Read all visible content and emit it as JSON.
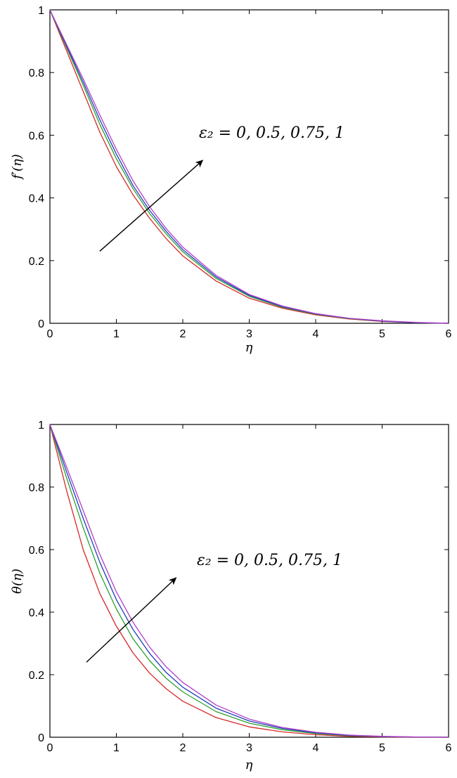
{
  "chart_data": [
    {
      "type": "line",
      "ylabel": "f′(η)",
      "xlabel": "η",
      "xlim": [
        0,
        6
      ],
      "ylim": [
        0,
        1
      ],
      "xticks": [
        "0",
        "1",
        "2",
        "3",
        "4",
        "5",
        "6"
      ],
      "yticks": [
        "0",
        "0.2",
        "0.4",
        "0.6",
        "0.8",
        "1"
      ],
      "annotation": "ε₂ = 0, 0.5, 0.75, 1",
      "colors": [
        "#d62728",
        "#2ca02c",
        "#1f3fbf",
        "#b23fc8"
      ],
      "series": [
        {
          "x": [
            0,
            0.25,
            0.5,
            0.75,
            1,
            1.25,
            1.5,
            1.75,
            2,
            2.5,
            3,
            3.5,
            4,
            4.5,
            5,
            5.5,
            6
          ],
          "values": [
            1,
            0.87,
            0.74,
            0.61,
            0.5,
            0.41,
            0.335,
            0.27,
            0.215,
            0.135,
            0.08,
            0.048,
            0.027,
            0.014,
            0.006,
            0.002,
            0
          ]
        },
        {
          "x": [
            0,
            0.25,
            0.5,
            0.75,
            1,
            1.25,
            1.5,
            1.75,
            2,
            2.5,
            3,
            3.5,
            4,
            4.5,
            5,
            5.5,
            6
          ],
          "values": [
            1,
            0.88,
            0.76,
            0.635,
            0.525,
            0.43,
            0.35,
            0.285,
            0.228,
            0.143,
            0.086,
            0.051,
            0.029,
            0.015,
            0.007,
            0.002,
            0
          ]
        },
        {
          "x": [
            0,
            0.25,
            0.5,
            0.75,
            1,
            1.25,
            1.5,
            1.75,
            2,
            2.5,
            3,
            3.5,
            4,
            4.5,
            5,
            5.5,
            6
          ],
          "values": [
            1,
            0.885,
            0.77,
            0.65,
            0.54,
            0.44,
            0.36,
            0.293,
            0.235,
            0.148,
            0.089,
            0.053,
            0.03,
            0.016,
            0.007,
            0.002,
            0
          ]
        },
        {
          "x": [
            0,
            0.25,
            0.5,
            0.75,
            1,
            1.25,
            1.5,
            1.75,
            2,
            2.5,
            3,
            3.5,
            4,
            4.5,
            5,
            5.5,
            6
          ],
          "values": [
            1,
            0.89,
            0.78,
            0.665,
            0.555,
            0.455,
            0.372,
            0.302,
            0.243,
            0.153,
            0.092,
            0.055,
            0.031,
            0.016,
            0.008,
            0.003,
            0
          ]
        }
      ],
      "arrow": {
        "from": [
          0.75,
          0.23
        ],
        "to": [
          2.3,
          0.52
        ]
      }
    },
    {
      "type": "line",
      "ylabel": "θ(η)",
      "xlabel": "η",
      "xlim": [
        0,
        6
      ],
      "ylim": [
        0,
        1
      ],
      "xticks": [
        "0",
        "1",
        "2",
        "3",
        "4",
        "5",
        "6"
      ],
      "yticks": [
        "0",
        "0.2",
        "0.4",
        "0.6",
        "0.8",
        "1"
      ],
      "annotation": "ε₂ = 0, 0.5, 0.75, 1",
      "colors": [
        "#d62728",
        "#2ca02c",
        "#1f3fbf",
        "#b23fc8"
      ],
      "series": [
        {
          "x": [
            0,
            0.25,
            0.5,
            0.75,
            1,
            1.25,
            1.5,
            1.75,
            2,
            2.5,
            3,
            3.5,
            4,
            4.5,
            5,
            5.5,
            6
          ],
          "values": [
            1,
            0.79,
            0.6,
            0.46,
            0.355,
            0.27,
            0.205,
            0.155,
            0.115,
            0.063,
            0.033,
            0.017,
            0.008,
            0.003,
            0.001,
            0,
            0
          ]
        },
        {
          "x": [
            0,
            0.25,
            0.5,
            0.75,
            1,
            1.25,
            1.5,
            1.75,
            2,
            2.5,
            3,
            3.5,
            4,
            4.5,
            5,
            5.5,
            6
          ],
          "values": [
            1,
            0.83,
            0.67,
            0.525,
            0.41,
            0.315,
            0.245,
            0.188,
            0.145,
            0.082,
            0.045,
            0.024,
            0.012,
            0.005,
            0.002,
            0.001,
            0
          ]
        },
        {
          "x": [
            0,
            0.25,
            0.5,
            0.75,
            1,
            1.25,
            1.5,
            1.75,
            2,
            2.5,
            3,
            3.5,
            4,
            4.5,
            5,
            5.5,
            6
          ],
          "values": [
            1,
            0.85,
            0.7,
            0.56,
            0.44,
            0.345,
            0.268,
            0.207,
            0.16,
            0.093,
            0.052,
            0.028,
            0.014,
            0.006,
            0.002,
            0.001,
            0
          ]
        },
        {
          "x": [
            0,
            0.25,
            0.5,
            0.75,
            1,
            1.25,
            1.5,
            1.75,
            2,
            2.5,
            3,
            3.5,
            4,
            4.5,
            5,
            5.5,
            6
          ],
          "values": [
            1,
            0.865,
            0.725,
            0.585,
            0.465,
            0.368,
            0.288,
            0.225,
            0.175,
            0.103,
            0.058,
            0.031,
            0.016,
            0.007,
            0.003,
            0.001,
            0
          ]
        }
      ],
      "arrow": {
        "from": [
          0.55,
          0.24
        ],
        "to": [
          1.9,
          0.51
        ]
      }
    }
  ]
}
